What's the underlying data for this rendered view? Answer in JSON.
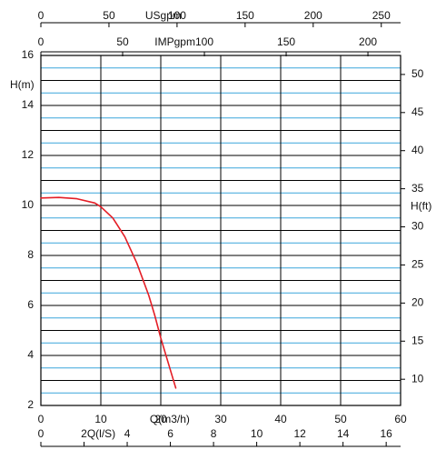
{
  "colors": {
    "curve": "#e41e26",
    "minor_grid": "#3aa6dc",
    "major_grid": "#000000",
    "axis": "#000000"
  },
  "chart_data": {
    "type": "line",
    "grid": true,
    "left_axis": {
      "label": "H(m)",
      "range": [
        2,
        16
      ],
      "ticks": [
        2,
        4,
        6,
        8,
        10,
        12,
        14,
        16
      ]
    },
    "right_axis": {
      "label": "H(ft)",
      "ticks": [
        10,
        15,
        20,
        25,
        30,
        35,
        40,
        45,
        50
      ]
    },
    "bottom_axis": {
      "label": "Q(m3/h)",
      "range": [
        0,
        60
      ],
      "ticks": [
        0,
        10,
        20,
        30,
        40,
        50,
        60
      ]
    },
    "bottom_axis_2": {
      "label": "Q(l/S)",
      "ticks": [
        0,
        2,
        4,
        6,
        8,
        10,
        12,
        14,
        16
      ]
    },
    "top_axis_1": {
      "label": "USgpm",
      "ticks": [
        0,
        50,
        100,
        150,
        200,
        250
      ]
    },
    "top_axis_2": {
      "label": "IMPgpm",
      "ticks": [
        0,
        50,
        100,
        150,
        200
      ]
    },
    "series": [
      {
        "x": [
          0,
          3,
          6,
          9,
          10,
          12,
          14,
          16,
          18,
          19,
          20,
          21,
          22.5
        ],
        "y": [
          10.3,
          10.32,
          10.27,
          10.1,
          9.95,
          9.5,
          8.75,
          7.7,
          6.4,
          5.6,
          4.7,
          3.9,
          2.7
        ]
      }
    ]
  }
}
